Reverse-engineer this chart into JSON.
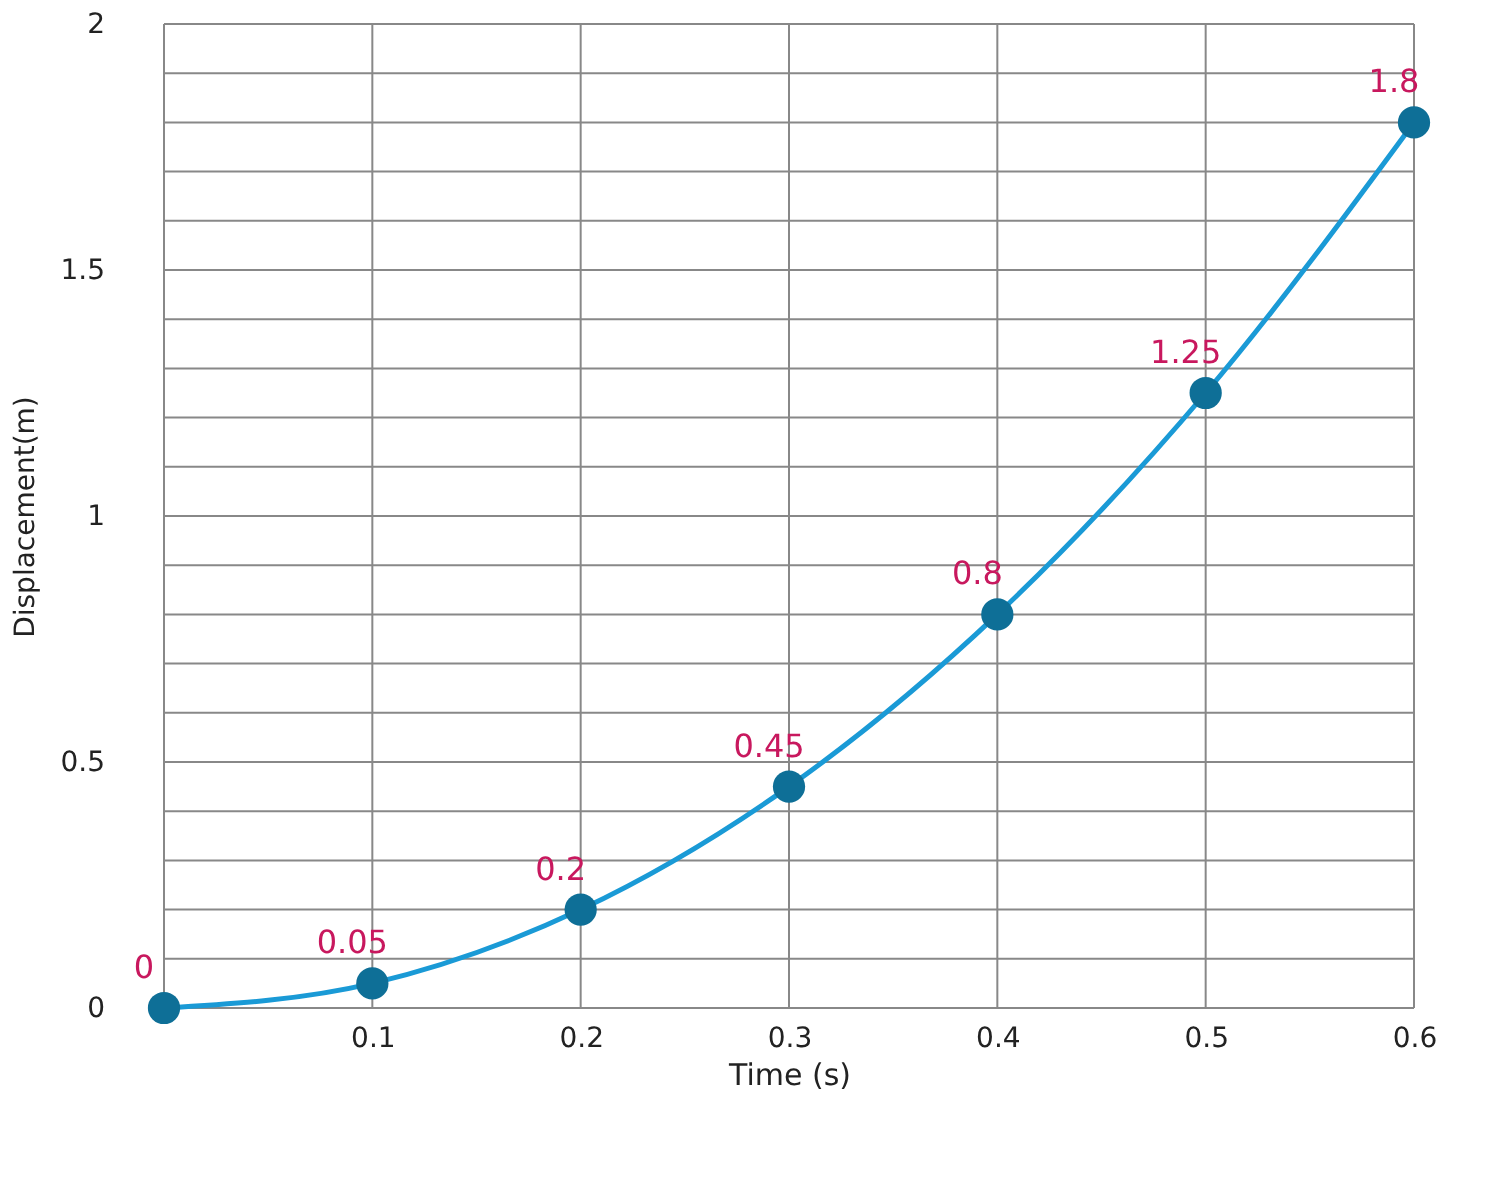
{
  "chart_data": {
    "type": "line",
    "xlabel": "Time (s)",
    "ylabel": "Displacement(m)",
    "x": [
      0,
      0.1,
      0.2,
      0.3,
      0.4,
      0.5,
      0.6
    ],
    "series": [
      {
        "color": "#1a9ad6",
        "values": [
          0,
          0.05,
          0.2,
          0.45,
          0.8,
          1.25,
          1.8
        ]
      }
    ],
    "xlim": [
      0,
      0.6
    ],
    "ylim": [
      0,
      2
    ],
    "xticks": [
      {
        "value": 0,
        "label": null
      },
      0.1,
      0.2,
      0.3,
      0.4,
      0.5,
      0.6
    ],
    "yticks": [
      0,
      {
        "value": 0.1,
        "label": null
      },
      {
        "value": 0.2,
        "label": null
      },
      {
        "value": 0.3,
        "label": null
      },
      {
        "value": 0.4,
        "label": null
      },
      0.5,
      {
        "value": 0.6,
        "label": null
      },
      {
        "value": 0.7,
        "label": null
      },
      {
        "value": 0.8,
        "label": null
      },
      {
        "value": 0.9,
        "label": null
      },
      1,
      {
        "value": 1.1,
        "label": null
      },
      {
        "value": 1.2,
        "label": null
      },
      {
        "value": 1.3,
        "label": null
      },
      {
        "value": 1.4,
        "label": null
      },
      1.5,
      {
        "value": 1.6,
        "label": null
      },
      {
        "value": 1.7,
        "label": null
      },
      {
        "value": 1.8,
        "label": null
      },
      {
        "value": 1.9,
        "label": null
      },
      2
    ],
    "grid": true,
    "marker": "circle",
    "line_style": "solid",
    "data_labels": true,
    "legend": false
  }
}
